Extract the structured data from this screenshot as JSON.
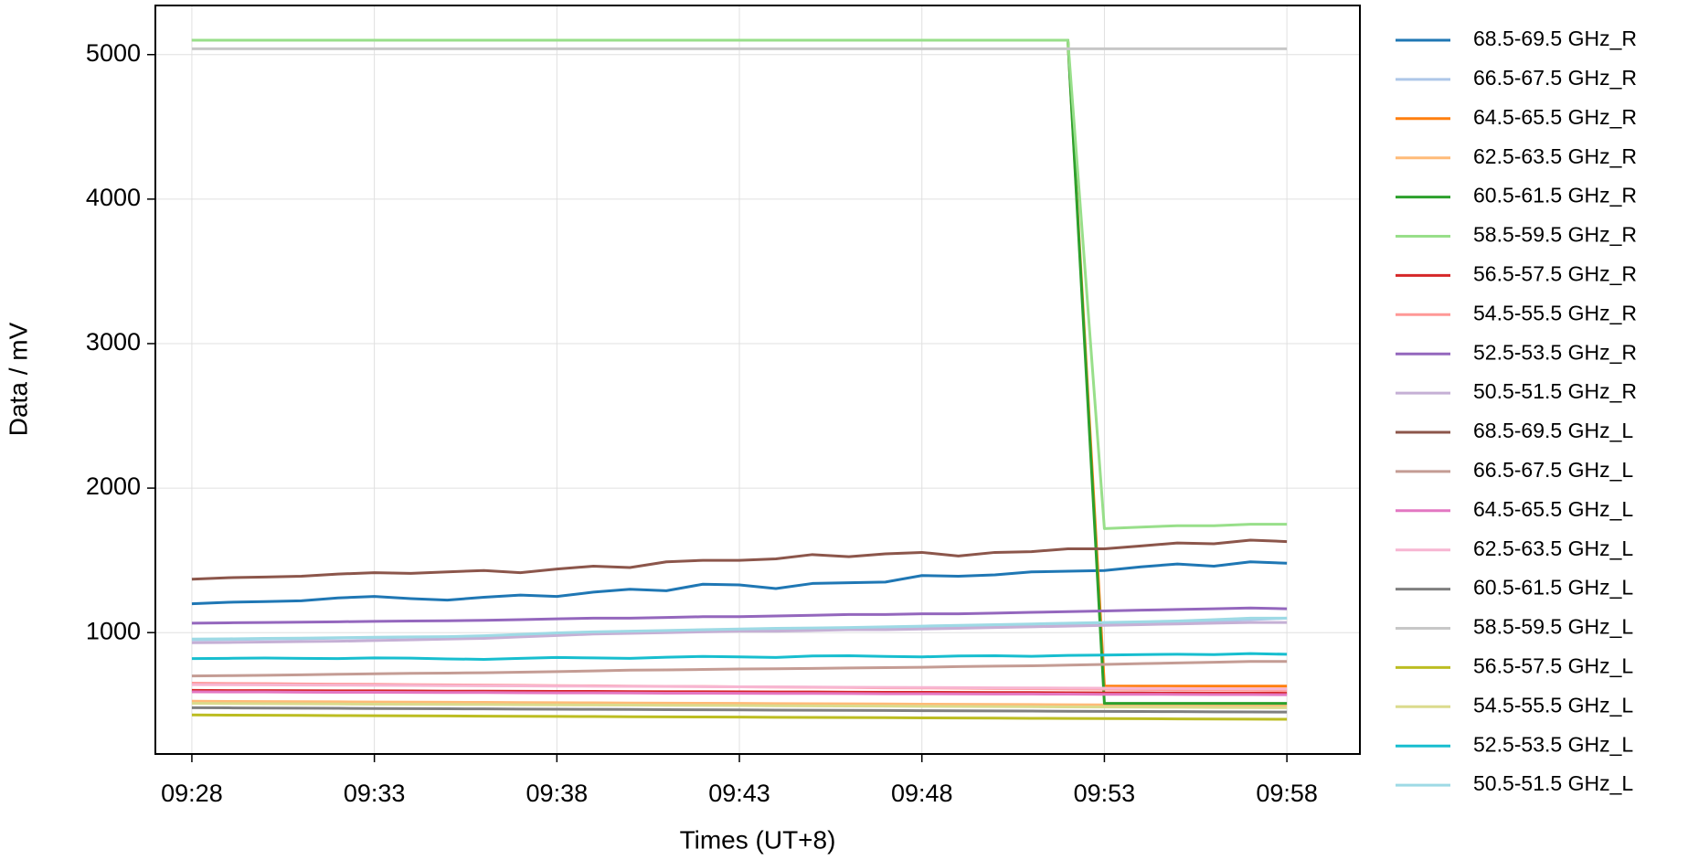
{
  "chart_data": {
    "type": "line",
    "xlabel": "Times (UT+8)",
    "ylabel": "Data / mV",
    "x": [
      "09:28",
      "09:29",
      "09:30",
      "09:31",
      "09:32",
      "09:33",
      "09:34",
      "09:35",
      "09:36",
      "09:37",
      "09:38",
      "09:39",
      "09:40",
      "09:41",
      "09:42",
      "09:43",
      "09:44",
      "09:45",
      "09:46",
      "09:47",
      "09:48",
      "09:49",
      "09:50",
      "09:51",
      "09:52",
      "09:53",
      "09:54",
      "09:55",
      "09:56",
      "09:57",
      "09:58"
    ],
    "xlim": [
      "09:27",
      "10:00"
    ],
    "xticks": [
      "09:28",
      "09:33",
      "09:38",
      "09:43",
      "09:48",
      "09:53",
      "09:58"
    ],
    "ylim": [
      160,
      5340
    ],
    "yticks": [
      1000,
      2000,
      3000,
      4000,
      5000
    ],
    "grid": true,
    "legend": "outside-right",
    "series": [
      {
        "name": "68.5-69.5 GHz_R",
        "color": "#1f77b4",
        "values": [
          1200,
          1210,
          1215,
          1220,
          1240,
          1250,
          1235,
          1225,
          1245,
          1260,
          1250,
          1280,
          1300,
          1290,
          1335,
          1330,
          1305,
          1340,
          1345,
          1350,
          1395,
          1390,
          1400,
          1420,
          1425,
          1430,
          1455,
          1475,
          1460,
          1490,
          1480
        ]
      },
      {
        "name": "66.5-67.5 GHz_R",
        "color": "#aec7e8",
        "values": [
          950,
          952,
          955,
          958,
          962,
          965,
          968,
          970,
          975,
          985,
          995,
          1000,
          1005,
          1010,
          1015,
          1020,
          1020,
          1025,
          1030,
          1030,
          1035,
          1040,
          1045,
          1050,
          1055,
          1060,
          1065,
          1070,
          1080,
          1090,
          1100
        ]
      },
      {
        "name": "64.5-65.5 GHz_R",
        "color": "#ff7f0e",
        "values": [
          5100,
          5100,
          5100,
          5100,
          5100,
          5100,
          5100,
          5100,
          5100,
          5100,
          5100,
          5100,
          5100,
          5100,
          5100,
          5100,
          5100,
          5100,
          5100,
          5100,
          5100,
          5100,
          5100,
          5100,
          5100,
          630,
          630,
          630,
          630,
          630,
          630
        ]
      },
      {
        "name": "62.5-63.5 GHz_R",
        "color": "#ffbb78",
        "values": [
          525,
          524,
          523,
          522,
          521,
          520,
          519,
          518,
          517,
          516,
          515,
          514,
          513,
          512,
          511,
          510,
          509,
          508,
          507,
          506,
          505,
          504,
          503,
          502,
          501,
          500,
          499,
          498,
          497,
          496,
          495
        ]
      },
      {
        "name": "60.5-61.5 GHz_R",
        "color": "#2ca02c",
        "values": [
          5100,
          5100,
          5100,
          5100,
          5100,
          5100,
          5100,
          5100,
          5100,
          5100,
          5100,
          5100,
          5100,
          5100,
          5100,
          5100,
          5100,
          5100,
          5100,
          5100,
          5100,
          5100,
          5100,
          5100,
          5100,
          510,
          510,
          510,
          510,
          510,
          510
        ]
      },
      {
        "name": "58.5-59.5 GHz_R",
        "color": "#98df8a",
        "values": [
          5100,
          5100,
          5100,
          5100,
          5100,
          5100,
          5100,
          5100,
          5100,
          5100,
          5100,
          5100,
          5100,
          5100,
          5100,
          5100,
          5100,
          5100,
          5100,
          5100,
          5100,
          5100,
          5100,
          5100,
          5100,
          1720,
          1730,
          1740,
          1740,
          1750,
          1750
        ]
      },
      {
        "name": "56.5-57.5 GHz_R",
        "color": "#d62728",
        "values": [
          600,
          599,
          599,
          598,
          597,
          597,
          596,
          595,
          595,
          594,
          593,
          593,
          592,
          591,
          591,
          590,
          589,
          589,
          588,
          587,
          587,
          586,
          585,
          585,
          584,
          583,
          583,
          582,
          581,
          581,
          580
        ]
      },
      {
        "name": "54.5-55.5 GHz_R",
        "color": "#ff9896",
        "values": [
          650,
          648,
          647,
          645,
          643,
          642,
          640,
          638,
          637,
          635,
          633,
          632,
          630,
          628,
          627,
          625,
          623,
          622,
          620,
          618,
          617,
          615,
          613,
          612,
          610,
          608,
          607,
          605,
          603,
          602,
          600
        ]
      },
      {
        "name": "52.5-53.5 GHz_R",
        "color": "#9467bd",
        "values": [
          1065,
          1068,
          1070,
          1072,
          1075,
          1078,
          1080,
          1082,
          1085,
          1090,
          1095,
          1100,
          1100,
          1105,
          1110,
          1110,
          1115,
          1120,
          1125,
          1125,
          1130,
          1130,
          1135,
          1140,
          1145,
          1150,
          1155,
          1160,
          1165,
          1170,
          1165
        ]
      },
      {
        "name": "50.5-51.5 GHz_R",
        "color": "#c5b0d5",
        "values": [
          930,
          932,
          935,
          938,
          940,
          945,
          950,
          955,
          960,
          970,
          980,
          990,
          995,
          1000,
          1005,
          1010,
          1010,
          1015,
          1020,
          1020,
          1025,
          1030,
          1035,
          1040,
          1045,
          1050,
          1055,
          1060,
          1065,
          1070,
          1070
        ]
      },
      {
        "name": "68.5-69.5 GHz_L",
        "color": "#8c564b",
        "values": [
          1370,
          1380,
          1385,
          1390,
          1405,
          1415,
          1410,
          1420,
          1430,
          1415,
          1440,
          1460,
          1450,
          1490,
          1500,
          1500,
          1510,
          1540,
          1525,
          1545,
          1555,
          1530,
          1555,
          1560,
          1580,
          1580,
          1600,
          1620,
          1615,
          1640,
          1630
        ]
      },
      {
        "name": "66.5-67.5 GHz_L",
        "color": "#c49c94",
        "values": [
          700,
          702,
          705,
          708,
          712,
          715,
          718,
          720,
          722,
          726,
          730,
          735,
          740,
          742,
          745,
          748,
          750,
          752,
          755,
          758,
          760,
          765,
          768,
          770,
          775,
          780,
          785,
          790,
          795,
          800,
          800
        ]
      },
      {
        "name": "64.5-65.5 GHz_L",
        "color": "#e377c2",
        "values": [
          590,
          589,
          589,
          588,
          587,
          587,
          586,
          585,
          585,
          584,
          583,
          583,
          582,
          581,
          581,
          580,
          579,
          579,
          578,
          577,
          577,
          576,
          575,
          575,
          574,
          573,
          573,
          572,
          571,
          571,
          570
        ]
      },
      {
        "name": "62.5-63.5 GHz_L",
        "color": "#f7b6d2",
        "values": [
          640,
          639,
          638,
          637,
          636,
          635,
          634,
          633,
          632,
          631,
          630,
          629,
          628,
          627,
          626,
          625,
          624,
          623,
          622,
          621,
          620,
          619,
          618,
          617,
          616,
          615,
          614,
          613,
          612,
          611,
          610
        ]
      },
      {
        "name": "60.5-61.5 GHz_L",
        "color": "#7f7f7f",
        "values": [
          480,
          479,
          478,
          477,
          476,
          475,
          474,
          473,
          472,
          471,
          470,
          469,
          468,
          467,
          466,
          465,
          464,
          463,
          462,
          461,
          460,
          459,
          458,
          457,
          456,
          455,
          454,
          453,
          452,
          451,
          450
        ]
      },
      {
        "name": "58.5-59.5 GHz_L",
        "color": "#c7c7c7",
        "values": [
          5040,
          5040,
          5040,
          5040,
          5040,
          5040,
          5040,
          5040,
          5040,
          5040,
          5040,
          5040,
          5040,
          5040,
          5040,
          5040,
          5040,
          5040,
          5040,
          5040,
          5040,
          5040,
          5040,
          5040,
          5040,
          5040,
          5040,
          5040,
          5040,
          5040,
          5040
        ]
      },
      {
        "name": "56.5-57.5 GHz_L",
        "color": "#bcbd22",
        "values": [
          430,
          429,
          428,
          427,
          426,
          425,
          424,
          423,
          422,
          421,
          420,
          419,
          418,
          417,
          416,
          415,
          414,
          413,
          412,
          411,
          410,
          409,
          408,
          407,
          406,
          405,
          404,
          403,
          402,
          401,
          400
        ]
      },
      {
        "name": "54.5-55.5 GHz_L",
        "color": "#dbdb8d",
        "values": [
          510,
          509,
          508,
          507,
          506,
          505,
          504,
          503,
          502,
          501,
          500,
          499,
          498,
          497,
          496,
          495,
          494,
          493,
          492,
          491,
          490,
          489,
          488,
          487,
          486,
          485,
          484,
          483,
          482,
          481,
          480
        ]
      },
      {
        "name": "52.5-53.5 GHz_L",
        "color": "#17becf",
        "values": [
          820,
          822,
          824,
          822,
          820,
          825,
          823,
          818,
          815,
          822,
          828,
          825,
          822,
          830,
          835,
          832,
          828,
          838,
          840,
          835,
          832,
          838,
          840,
          836,
          842,
          845,
          848,
          850,
          848,
          855,
          850
        ]
      },
      {
        "name": "50.5-51.5 GHz_L",
        "color": "#9edae5",
        "values": [
          955,
          957,
          960,
          962,
          965,
          968,
          970,
          972,
          978,
          988,
          998,
          1005,
          1010,
          1015,
          1020,
          1025,
          1030,
          1032,
          1035,
          1040,
          1045,
          1050,
          1055,
          1060,
          1065,
          1070,
          1075,
          1080,
          1090,
          1100,
          1100
        ]
      }
    ]
  }
}
